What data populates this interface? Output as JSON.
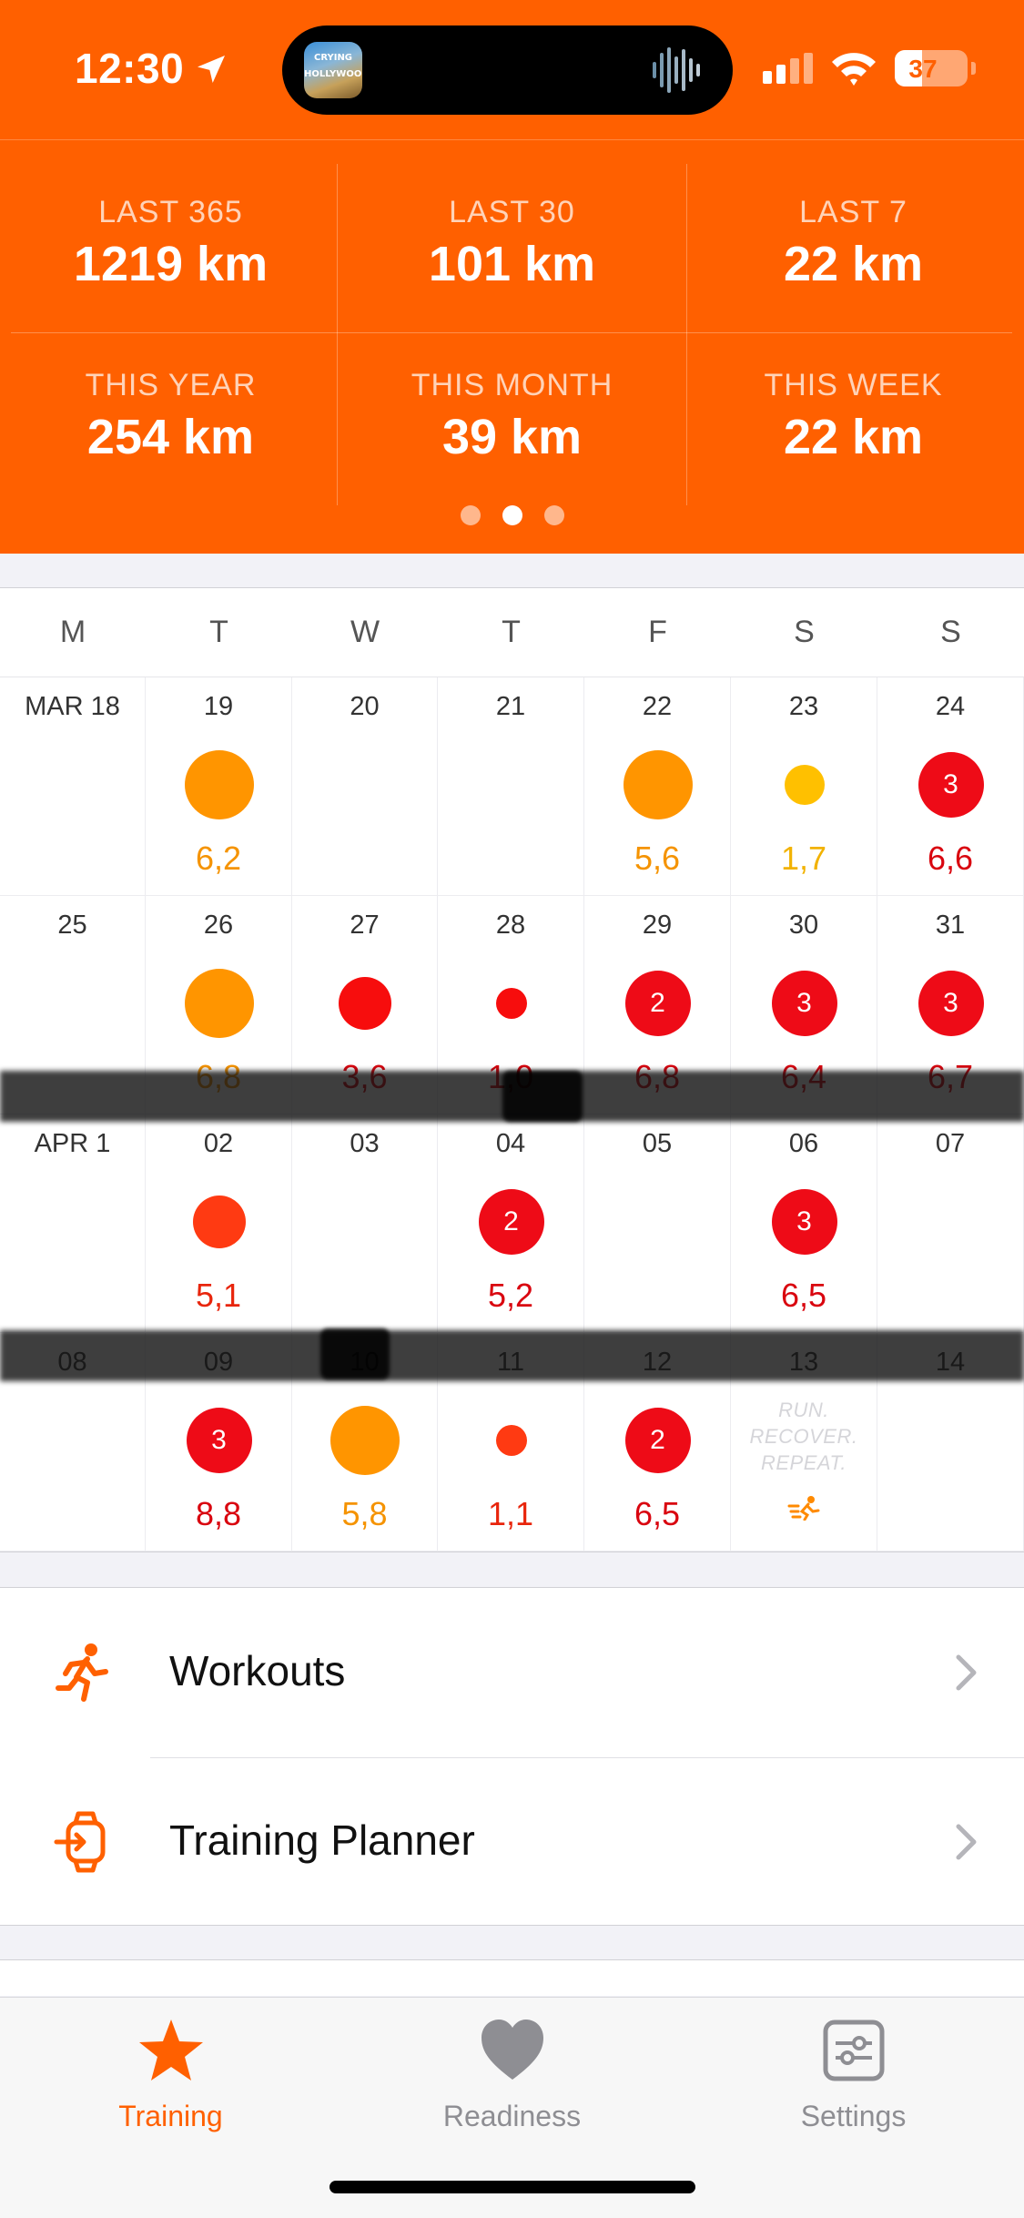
{
  "status_bar": {
    "time": "12:30",
    "battery": "37",
    "island_art_text": "CRYING HOLLYWOOD"
  },
  "stats": [
    {
      "label": "LAST 365",
      "value": "1219 km"
    },
    {
      "label": "LAST 30",
      "value": "101 km"
    },
    {
      "label": "LAST 7",
      "value": "22 km"
    },
    {
      "label": "THIS YEAR",
      "value": "254 km"
    },
    {
      "label": "THIS MONTH",
      "value": "39 km"
    },
    {
      "label": "THIS WEEK",
      "value": "22 km"
    }
  ],
  "page_dots": {
    "count": 3,
    "active": 1
  },
  "calendar": {
    "weekdays": [
      "M",
      "T",
      "W",
      "T",
      "F",
      "S",
      "S"
    ],
    "weeks": [
      [
        {
          "date": "MAR 18"
        },
        {
          "date": "19",
          "dist": "6,2",
          "size": "L",
          "color": "#ff9500"
        },
        {
          "date": "20"
        },
        {
          "date": "21"
        },
        {
          "date": "22",
          "dist": "5,6",
          "size": "L",
          "color": "#ff9500"
        },
        {
          "date": "23",
          "dist": "1,7",
          "size": "S",
          "color": "#ffc000",
          "text_color": "#f2b200"
        },
        {
          "date": "24",
          "dist": "6,6",
          "size": "M",
          "color": "#ee0b17",
          "count": "3"
        }
      ],
      [
        {
          "date": "25"
        },
        {
          "date": "26",
          "dist": "6,8",
          "size": "L",
          "color": "#ff9500"
        },
        {
          "date": "27",
          "dist": "3,6",
          "size": "M2",
          "color": "#f70d0d"
        },
        {
          "date": "28",
          "dist": "1,0",
          "size": "XS",
          "color": "#f70d0d"
        },
        {
          "date": "29",
          "dist": "6,8",
          "size": "M",
          "color": "#ee0b17",
          "count": "2"
        },
        {
          "date": "30",
          "dist": "6,4",
          "size": "M",
          "color": "#ee0b17",
          "count": "3"
        },
        {
          "date": "31",
          "dist": "6,7",
          "size": "M",
          "color": "#ee0b17",
          "count": "3"
        }
      ],
      [
        {
          "date": "APR 1"
        },
        {
          "date": "02",
          "dist": "5,1",
          "size": "M2",
          "color": "#ff3a12"
        },
        {
          "date": "03"
        },
        {
          "date": "04",
          "dist": "5,2",
          "size": "M",
          "color": "#ee0b17",
          "count": "2"
        },
        {
          "date": "05"
        },
        {
          "date": "06",
          "dist": "6,5",
          "size": "M",
          "color": "#ee0b17",
          "count": "3"
        },
        {
          "date": "07"
        }
      ],
      [
        {
          "date": "08"
        },
        {
          "date": "09",
          "dist": "8,8",
          "size": "M",
          "color": "#ee0b17",
          "count": "3"
        },
        {
          "date": "10",
          "dist": "5,8",
          "size": "L",
          "color": "#ff9500"
        },
        {
          "date": "11",
          "dist": "1,1",
          "size": "XS",
          "color": "#ff3a12"
        },
        {
          "date": "12",
          "dist": "6,5",
          "size": "M",
          "color": "#ee0b17",
          "count": "2"
        },
        {
          "date": "13",
          "motto": [
            "RUN.",
            "RECOVER.",
            "REPEAT."
          ]
        },
        {
          "date": "14"
        }
      ]
    ]
  },
  "list": {
    "workouts": "Workouts",
    "training_planner": "Training Planner"
  },
  "tabs": [
    {
      "label": "Training",
      "icon": "star-icon",
      "active": true
    },
    {
      "label": "Readiness",
      "icon": "heart-icon",
      "active": false
    },
    {
      "label": "Settings",
      "icon": "sliders-icon",
      "active": false
    }
  ],
  "colors": {
    "brand": "#ff6000",
    "tab_inactive": "#8e8e93"
  }
}
